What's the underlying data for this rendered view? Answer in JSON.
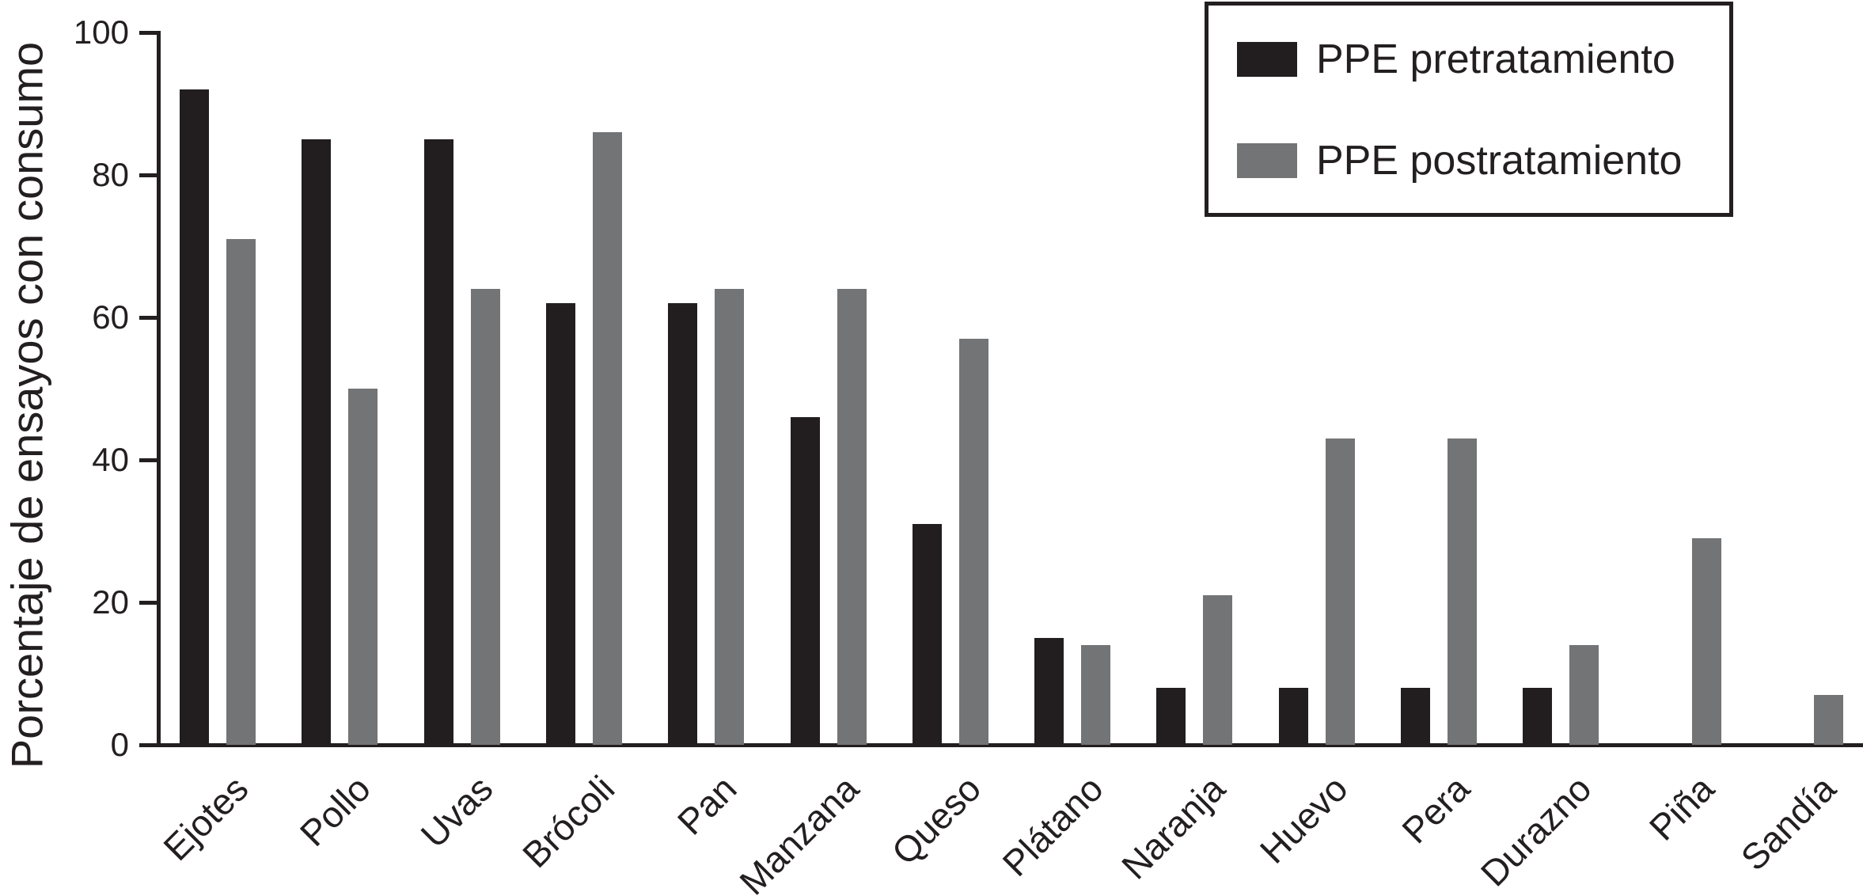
{
  "figure": {
    "background": "#ffffff",
    "text_color": "#231f20"
  },
  "chart_data": {
    "type": "bar",
    "title": "",
    "xlabel": "",
    "ylabel": "Porcentaje de ensayos con consumo",
    "ylim": [
      0,
      100
    ],
    "yticks": [
      0,
      20,
      40,
      60,
      80,
      100
    ],
    "grid": false,
    "legend_position": "top-right",
    "categories": [
      "Ejotes",
      "Pollo",
      "Uvas",
      "Brócoli",
      "Pan",
      "Manzana",
      "Queso",
      "Plátano",
      "Naranja",
      "Huevo",
      "Pera",
      "Durazno",
      "Piña",
      "Sandía"
    ],
    "series": [
      {
        "name": "PPE pretratamiento",
        "color": "#221e1f",
        "values": [
          92,
          85,
          85,
          62,
          62,
          46,
          31,
          15,
          8,
          8,
          8,
          8,
          0,
          0
        ]
      },
      {
        "name": "PPE postratamiento",
        "color": "#737476",
        "values": [
          71,
          50,
          64,
          86,
          64,
          64,
          57,
          14,
          21,
          43,
          43,
          14,
          29,
          7
        ]
      }
    ]
  }
}
